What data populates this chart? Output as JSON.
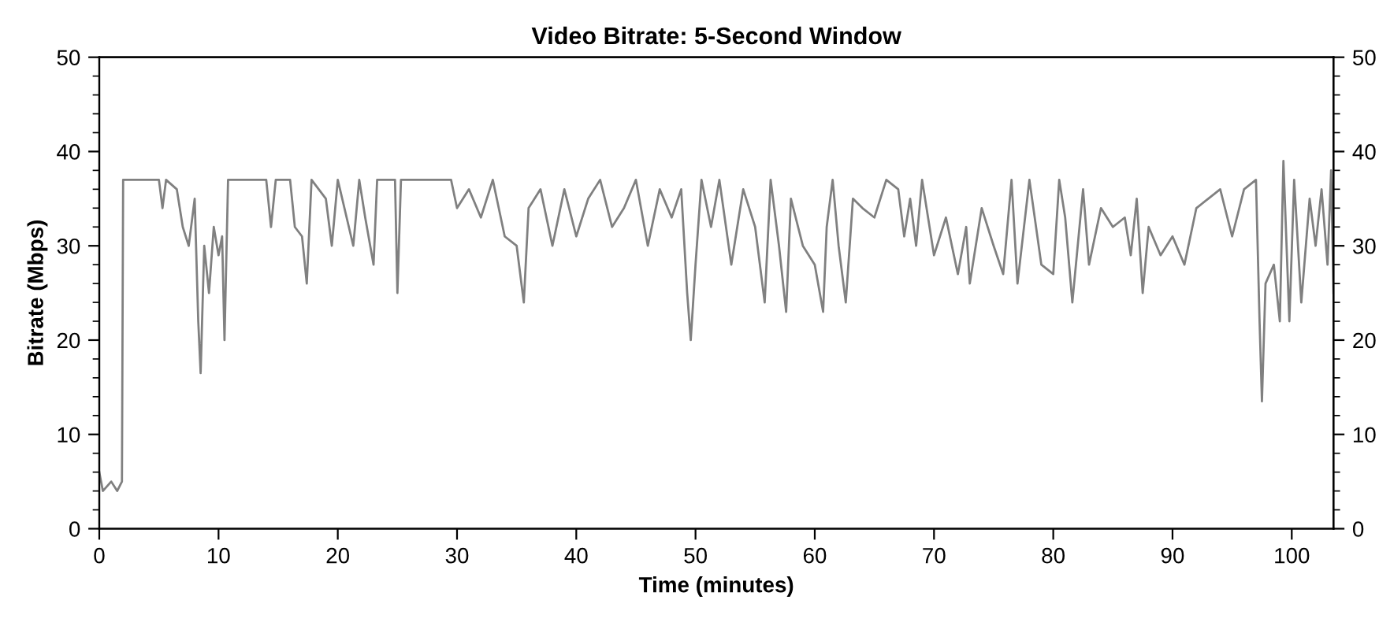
{
  "chart_data": {
    "type": "line",
    "title": "Video Bitrate: 5-Second Window",
    "xlabel": "Time (minutes)",
    "ylabel": "Bitrate (Mbps)",
    "xlim": [
      0,
      103.5
    ],
    "xticks": [
      0,
      10,
      20,
      30,
      40,
      50,
      60,
      70,
      80,
      90,
      100
    ],
    "ylim": [
      0,
      50
    ],
    "yticks": [
      0,
      10,
      20,
      30,
      40,
      50
    ],
    "y2lim": [
      0,
      50
    ],
    "y2ticks": [
      0,
      10,
      20,
      30,
      40,
      50
    ],
    "grid": false,
    "legend": false,
    "marker": "none",
    "line_style": "solid",
    "series": [
      {
        "color": "#808080",
        "x": [
          0,
          0.3,
          1,
          1.5,
          1.9,
          2.0,
          5,
          5.3,
          5.6,
          6.5,
          7,
          7.5,
          8,
          8.3,
          8.5,
          8.8,
          9.2,
          9.6,
          10,
          10.3,
          10.5,
          10.8,
          14,
          14.4,
          14.8,
          16,
          16.4,
          17,
          17.4,
          17.8,
          19,
          19.5,
          20,
          21.3,
          21.8,
          22.3,
          23,
          23.3,
          24.8,
          25,
          25.3,
          29.5,
          30,
          31,
          32,
          33,
          34,
          35,
          35.6,
          36,
          37,
          38,
          39,
          40,
          41,
          42,
          43,
          44,
          45,
          46,
          47,
          48,
          48.8,
          49.3,
          49.6,
          50,
          50.5,
          51.3,
          52,
          53,
          54,
          55,
          55.8,
          56.3,
          57,
          57.6,
          58,
          59,
          60,
          60.7,
          61,
          61.5,
          62,
          62.6,
          63.2,
          64,
          65,
          66,
          67,
          67.5,
          68,
          68.5,
          69,
          70,
          71,
          72,
          72.7,
          73,
          74,
          75,
          75.8,
          76.5,
          77,
          78,
          79,
          80,
          80.5,
          81,
          81.6,
          82.5,
          83,
          84,
          85,
          86,
          86.5,
          87,
          87.5,
          88,
          89,
          90,
          91,
          92,
          93,
          94,
          95,
          96,
          97,
          97.3,
          97.5,
          97.8,
          98.5,
          99,
          99.3,
          99.8,
          100.2,
          100.8,
          101.5,
          102,
          102.5,
          103,
          103.3,
          103.5
        ],
        "values": [
          6,
          4,
          5,
          4,
          5,
          37,
          37,
          34,
          37,
          36,
          32,
          30,
          35,
          22,
          16.5,
          30,
          25,
          32,
          29,
          31,
          20,
          37,
          37,
          32,
          37,
          37,
          32,
          31,
          26,
          37,
          35,
          30,
          37,
          30,
          37,
          33,
          28,
          37,
          37,
          25,
          37,
          37,
          34,
          36,
          33,
          37,
          31,
          30,
          24,
          34,
          36,
          30,
          36,
          31,
          35,
          37,
          32,
          34,
          37,
          30,
          36,
          33,
          36,
          25,
          20,
          28,
          37,
          32,
          37,
          28,
          36,
          32,
          24,
          37,
          30,
          23,
          35,
          30,
          28,
          23,
          32,
          37,
          30,
          24,
          35,
          34,
          33,
          37,
          36,
          31,
          35,
          30,
          37,
          29,
          33,
          27,
          32,
          26,
          34,
          30,
          27,
          37,
          26,
          37,
          28,
          27,
          37,
          33,
          24,
          36,
          28,
          34,
          32,
          33,
          29,
          35,
          25,
          32,
          29,
          31,
          28,
          34,
          35,
          36,
          31,
          36,
          37,
          22,
          13.5,
          26,
          28,
          22,
          39,
          22,
          37,
          24,
          35,
          30,
          36,
          28,
          38,
          25
        ]
      }
    ]
  }
}
